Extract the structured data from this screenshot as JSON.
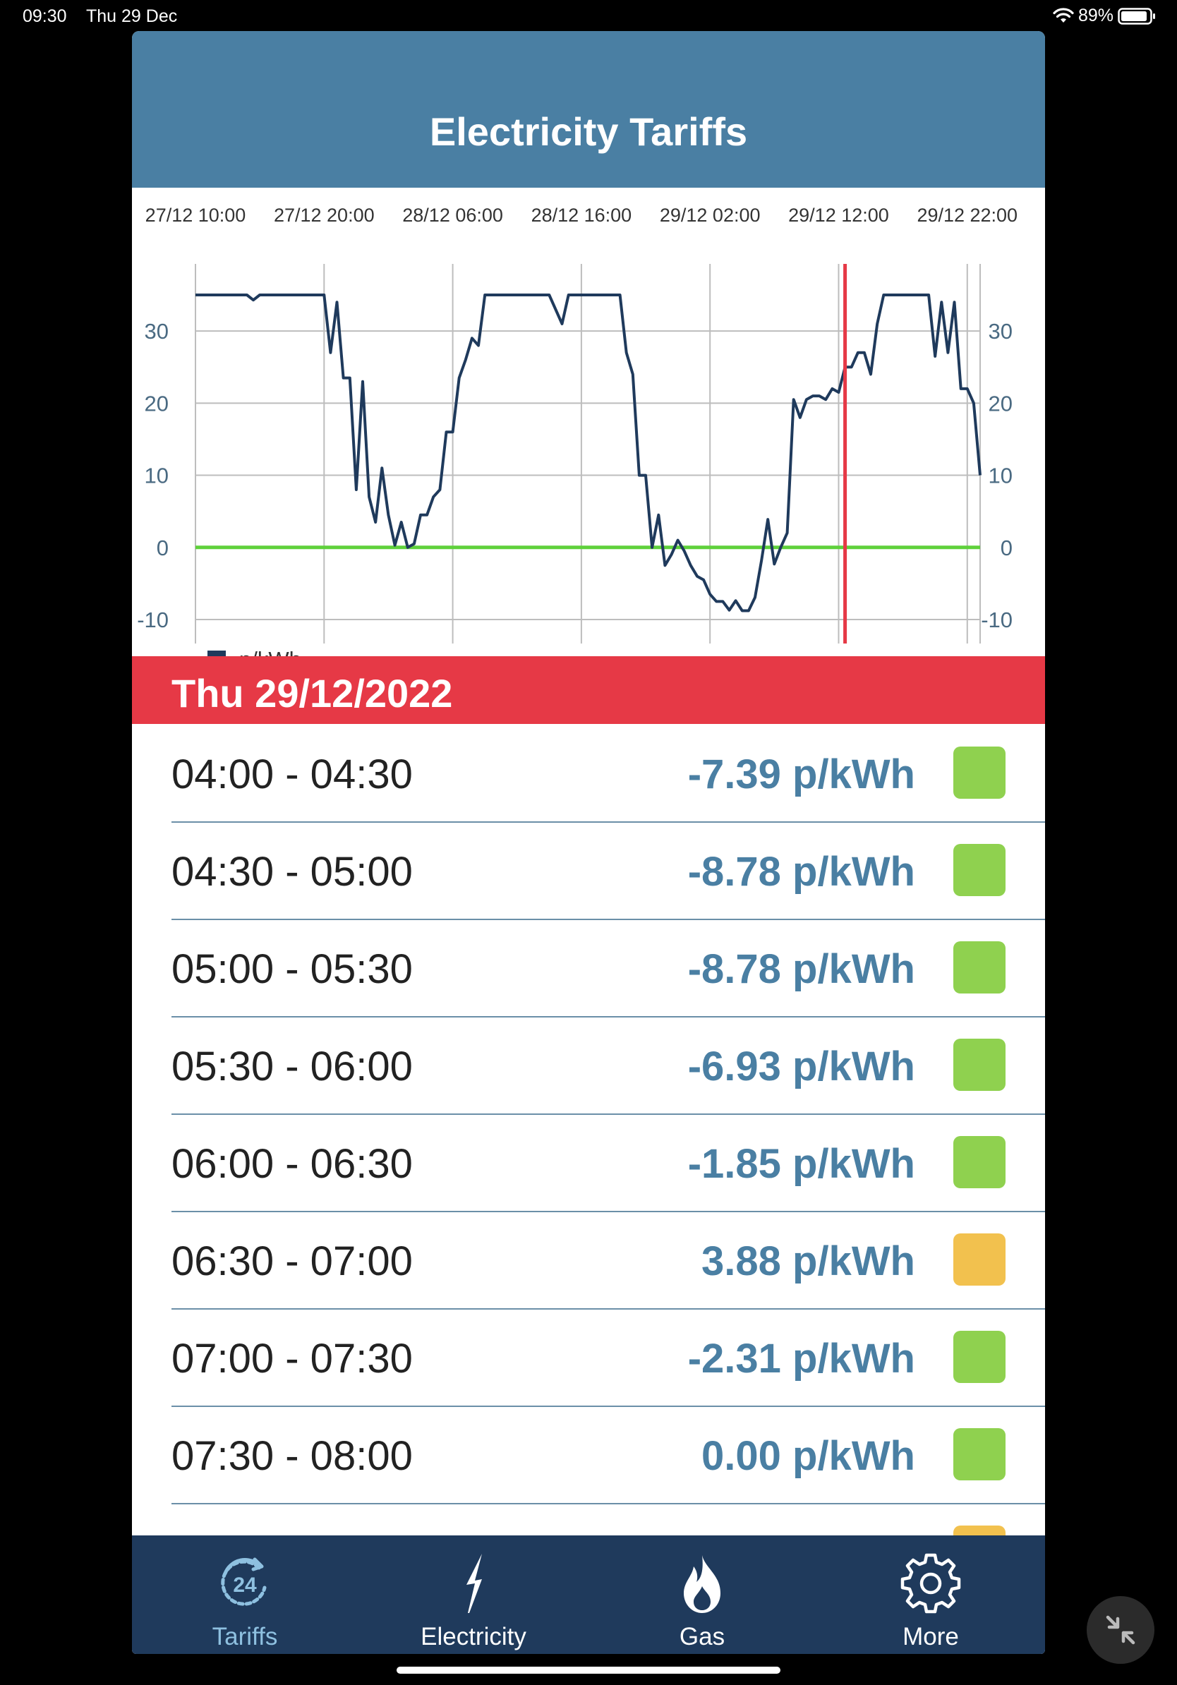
{
  "status_bar": {
    "time": "09:30",
    "date": "Thu 29 Dec",
    "battery": "89%",
    "battery_level": 0.89
  },
  "header": {
    "title": "Electricity Tariffs"
  },
  "chart_data": {
    "type": "line",
    "x_tick_labels": [
      "27/12 10:00",
      "27/12 20:00",
      "28/12 06:00",
      "28/12 16:00",
      "29/12 02:00",
      "29/12 12:00",
      "29/12 22:00"
    ],
    "y_tick_labels": [
      "30",
      "20",
      "10",
      "0",
      "-10"
    ],
    "y_ticks": [
      30,
      20,
      10,
      0,
      -10
    ],
    "ylim": [
      -10,
      35
    ],
    "x_start": "27/12 10:00",
    "x_end": "29/12 23:00",
    "now_marker": "29/12 12:30",
    "zero_line_color": "#5fd13b",
    "now_line_color": "#e63946",
    "series": [
      {
        "name": "p/kWh",
        "color": "#1f3a5c",
        "points": [
          [
            "27/12 10:00",
            35
          ],
          [
            "27/12 14:00",
            35
          ],
          [
            "27/12 14:30",
            34.3
          ],
          [
            "27/12 15:00",
            35
          ],
          [
            "27/12 20:00",
            35
          ],
          [
            "27/12 20:30",
            27
          ],
          [
            "27/12 21:00",
            34
          ],
          [
            "27/12 21:30",
            23.5
          ],
          [
            "27/12 22:00",
            23.5
          ],
          [
            "27/12 22:30",
            8
          ],
          [
            "27/12 23:00",
            23
          ],
          [
            "27/12 23:30",
            7
          ],
          [
            "28/12 00:00",
            3.5
          ],
          [
            "28/12 00:30",
            11
          ],
          [
            "28/12 01:00",
            4.5
          ],
          [
            "28/12 01:30",
            0.3
          ],
          [
            "28/12 02:00",
            3.5
          ],
          [
            "28/12 02:30",
            0
          ],
          [
            "28/12 03:00",
            0.5
          ],
          [
            "28/12 03:30",
            4.5
          ],
          [
            "28/12 04:00",
            4.5
          ],
          [
            "28/12 04:30",
            7
          ],
          [
            "28/12 05:00",
            8
          ],
          [
            "28/12 05:30",
            16
          ],
          [
            "28/12 06:00",
            16
          ],
          [
            "28/12 06:30",
            23.5
          ],
          [
            "28/12 07:00",
            26
          ],
          [
            "28/12 07:30",
            29
          ],
          [
            "28/12 08:00",
            28
          ],
          [
            "28/12 08:30",
            35
          ],
          [
            "28/12 13:30",
            35
          ],
          [
            "28/12 14:30",
            31
          ],
          [
            "28/12 15:00",
            35
          ],
          [
            "28/12 19:00",
            35
          ],
          [
            "28/12 19:30",
            27
          ],
          [
            "28/12 20:00",
            24
          ],
          [
            "28/12 20:30",
            10
          ],
          [
            "28/12 21:00",
            10
          ],
          [
            "28/12 21:30",
            0
          ],
          [
            "28/12 22:00",
            4.5
          ],
          [
            "28/12 22:30",
            -2.5
          ],
          [
            "28/12 23:00",
            -1
          ],
          [
            "28/12 23:30",
            1
          ],
          [
            "29/12 00:00",
            -0.5
          ],
          [
            "29/12 00:30",
            -2.5
          ],
          [
            "29/12 01:00",
            -4
          ],
          [
            "29/12 01:30",
            -4.5
          ],
          [
            "29/12 02:00",
            -6.5
          ],
          [
            "29/12 02:30",
            -7.5
          ],
          [
            "29/12 03:00",
            -7.5
          ],
          [
            "29/12 03:30",
            -8.7
          ],
          [
            "29/12 04:00",
            -7.39
          ],
          [
            "29/12 04:30",
            -8.78
          ],
          [
            "29/12 05:00",
            -8.78
          ],
          [
            "29/12 05:30",
            -6.93
          ],
          [
            "29/12 06:00",
            -1.85
          ],
          [
            "29/12 06:30",
            3.88
          ],
          [
            "29/12 07:00",
            -2.31
          ],
          [
            "29/12 07:30",
            0.0
          ],
          [
            "29/12 08:00",
            2
          ],
          [
            "29/12 08:30",
            20.5
          ],
          [
            "29/12 09:00",
            18
          ],
          [
            "29/12 09:30",
            20.5
          ],
          [
            "29/12 10:00",
            21
          ],
          [
            "29/12 10:30",
            21
          ],
          [
            "29/12 11:00",
            20.5
          ],
          [
            "29/12 11:30",
            22
          ],
          [
            "29/12 12:00",
            21.5
          ],
          [
            "29/12 12:30",
            25
          ],
          [
            "29/12 13:00",
            25
          ],
          [
            "29/12 13:30",
            27
          ],
          [
            "29/12 14:00",
            27
          ],
          [
            "29/12 14:30",
            24
          ],
          [
            "29/12 15:00",
            31
          ],
          [
            "29/12 15:30",
            35
          ],
          [
            "29/12 19:00",
            35
          ],
          [
            "29/12 19:30",
            26.5
          ],
          [
            "29/12 20:00",
            34
          ],
          [
            "29/12 20:30",
            27
          ],
          [
            "29/12 21:00",
            34
          ],
          [
            "29/12 21:30",
            22
          ],
          [
            "29/12 22:00",
            22
          ],
          [
            "29/12 22:30",
            20
          ],
          [
            "29/12 23:00",
            10
          ]
        ]
      }
    ],
    "legend": {
      "label": "p/kWh",
      "placement": "bottom-left"
    },
    "grid": true
  },
  "day_banner": {
    "label": "Thu 29/12/2022"
  },
  "tariffs": [
    {
      "time": "04:00 - 04:30",
      "price": "-7.39 p/kWh",
      "value": -7.39,
      "swatch": "#8fd14f"
    },
    {
      "time": "04:30 - 05:00",
      "price": "-8.78 p/kWh",
      "value": -8.78,
      "swatch": "#8fd14f"
    },
    {
      "time": "05:00 - 05:30",
      "price": "-8.78 p/kWh",
      "value": -8.78,
      "swatch": "#8fd14f"
    },
    {
      "time": "05:30 - 06:00",
      "price": "-6.93 p/kWh",
      "value": -6.93,
      "swatch": "#8fd14f"
    },
    {
      "time": "06:00 - 06:30",
      "price": "-1.85 p/kWh",
      "value": -1.85,
      "swatch": "#8fd14f"
    },
    {
      "time": "06:30 - 07:00",
      "price": "3.88 p/kWh",
      "value": 3.88,
      "swatch": "#f2c14e"
    },
    {
      "time": "07:00 - 07:30",
      "price": "-2.31 p/kWh",
      "value": -2.31,
      "swatch": "#8fd14f"
    },
    {
      "time": "07:30 - 08:00",
      "price": "0.00 p/kWh",
      "value": 0.0,
      "swatch": "#8fd14f"
    }
  ],
  "partial_row_swatch": "#f2c14e",
  "tab_bar": {
    "tabs": [
      {
        "label": "Tariffs",
        "icon": "24-hour-clock-icon",
        "active": true
      },
      {
        "label": "Electricity",
        "icon": "lightning-bolt-icon",
        "active": false
      },
      {
        "label": "Gas",
        "icon": "flame-icon",
        "active": false
      },
      {
        "label": "More",
        "icon": "gear-icon",
        "active": false
      }
    ]
  },
  "colors": {
    "header": "#4a7fa3",
    "banner": "#e63946",
    "tab_bar": "#1f3a5c",
    "price_text": "#4a7fa3",
    "active_tab": "#8ec0e0"
  }
}
